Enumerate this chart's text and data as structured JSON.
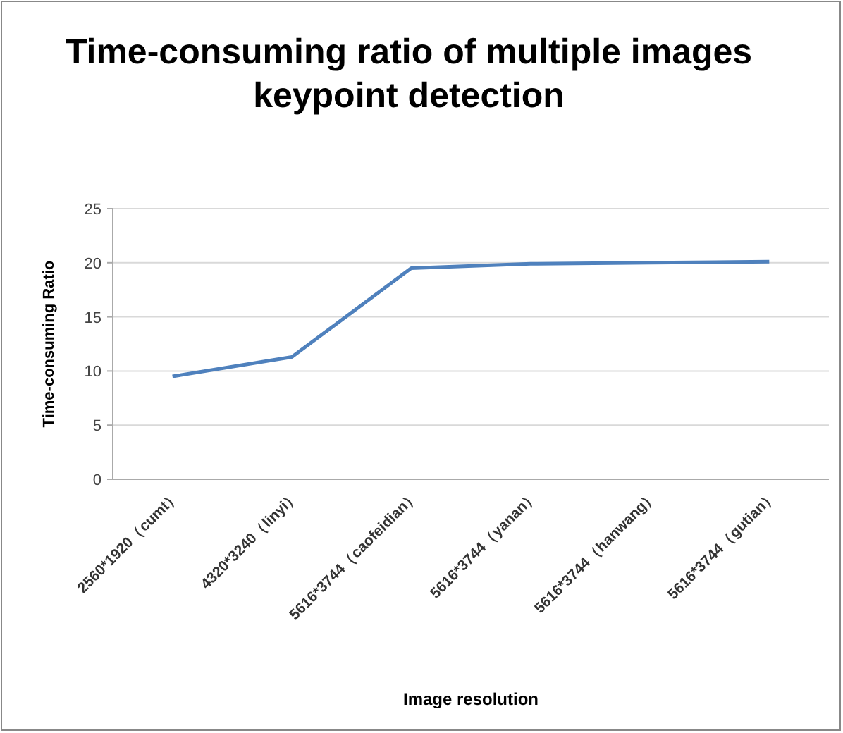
{
  "chart_data": {
    "type": "line",
    "title": "Time-consuming ratio of multiple images keypoint detection",
    "xlabel": "Image resolution",
    "ylabel": "Time-consuming Ratio",
    "categories": [
      "2560*1920（cumt）",
      "4320*3240（linyi）",
      "5616*3744（caofeidian）",
      "5616*3744（yanan）",
      "5616*3744（hanwang）",
      "5616*3744（gutian）"
    ],
    "series": [
      {
        "color": "#4f81bd",
        "values": [
          9.5,
          11.3,
          19.5,
          19.9,
          20.0,
          20.1
        ]
      }
    ],
    "ylim": [
      0,
      25
    ],
    "yticks": [
      0,
      5,
      10,
      15,
      20,
      25
    ],
    "grid": "y",
    "marker": "none",
    "line_style": "solid"
  }
}
